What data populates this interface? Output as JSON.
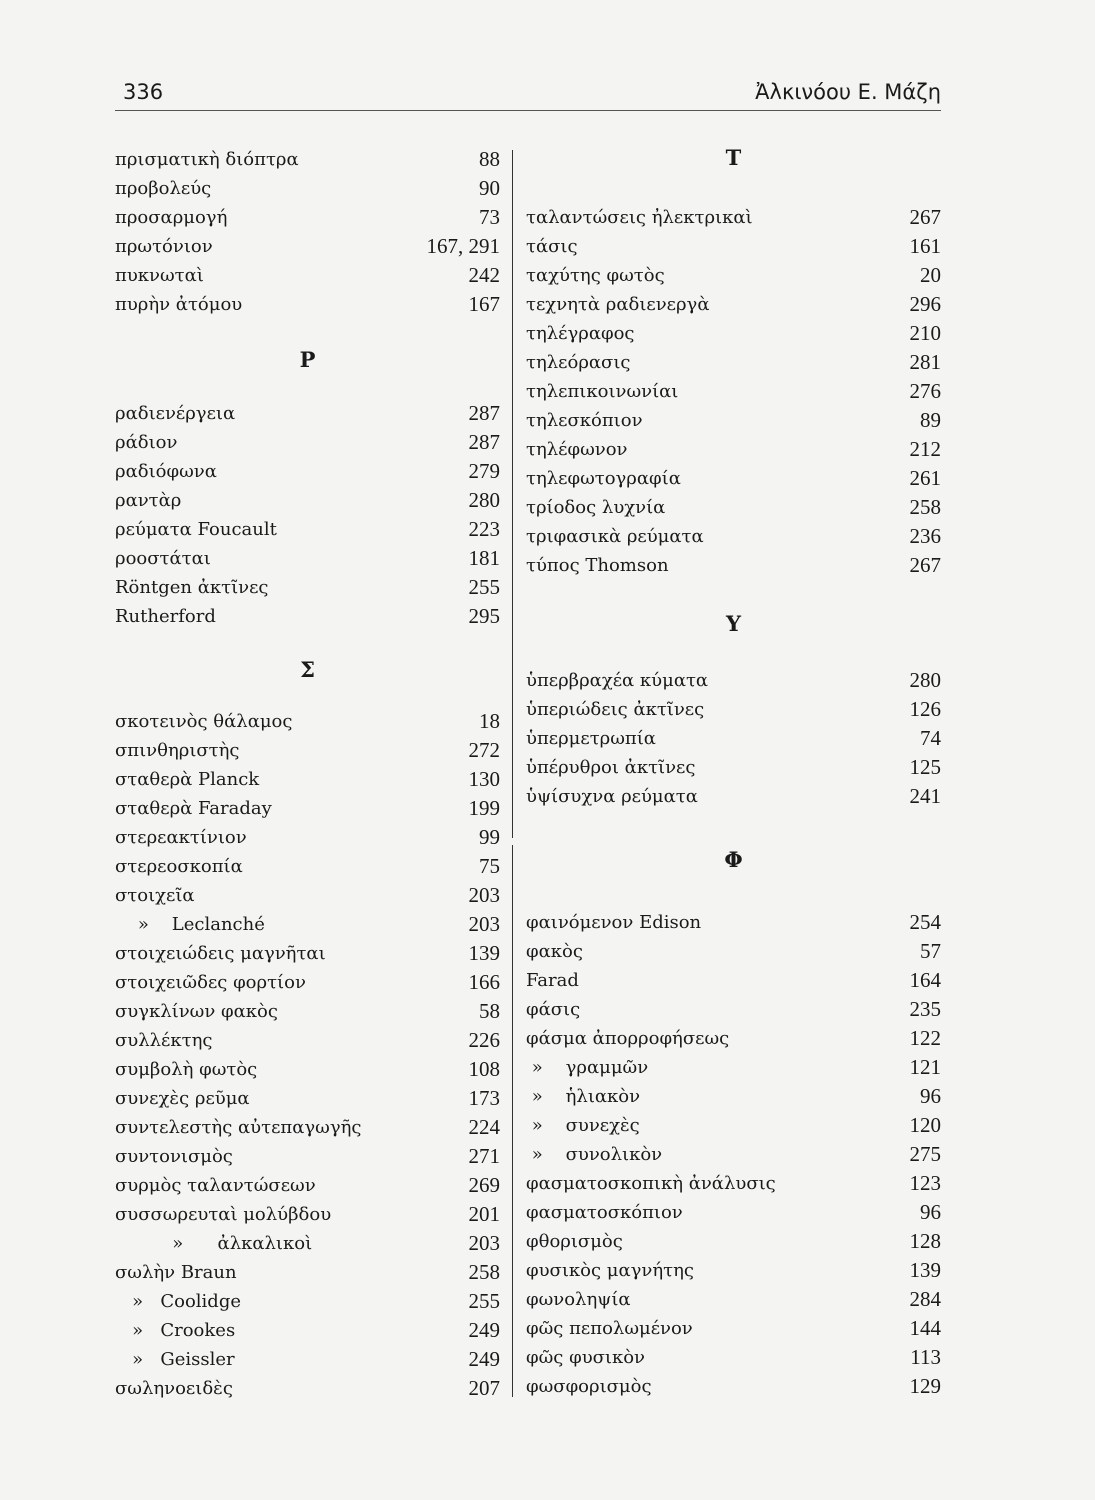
{
  "header": {
    "page_number": "336",
    "running_title": "Ἀλκινόου Ε. Μάζη"
  },
  "left": {
    "sections": [
      {
        "heading": "",
        "entries": [
          {
            "term": "πρισματικὴ διόπτρα",
            "page": "88"
          },
          {
            "term": "προβολεύς",
            "page": "90"
          },
          {
            "term": "προσαρμογή",
            "page": "73"
          },
          {
            "term": "πρωτόνιον",
            "page": "167, 291"
          },
          {
            "term": "πυκνωταὶ",
            "page": "242"
          },
          {
            "term": "πυρὴν ἀτόμου",
            "page": "167"
          }
        ]
      },
      {
        "heading": "Ρ",
        "entries": [
          {
            "term": "ραδιενέργεια",
            "page": "287"
          },
          {
            "term": "ράδιον",
            "page": "287"
          },
          {
            "term": "ραδιόφωνα",
            "page": "279"
          },
          {
            "term": "ραντὰρ",
            "page": "280"
          },
          {
            "term": "ρεύματα Foucault",
            "page": "223"
          },
          {
            "term": "ροοστάται",
            "page": "181"
          },
          {
            "term": "Röntgen ἀκτῖνες",
            "page": "255"
          },
          {
            "term": "Rutherford",
            "page": "295"
          }
        ]
      },
      {
        "heading": "Σ",
        "entries": [
          {
            "term": "σκοτεινὸς θάλαμος",
            "page": "18"
          },
          {
            "term": "σπινθηριστὴς",
            "page": "272"
          },
          {
            "term": "σταθερὰ Planck",
            "page": "130"
          },
          {
            "term": "σταθερὰ Faraday",
            "page": "199"
          },
          {
            "term": "στερεακτίνιον",
            "page": "99"
          },
          {
            "term": "στερεοσκοπία",
            "page": "75"
          },
          {
            "term": "στοιχεῖα",
            "page": "203"
          },
          {
            "term": "    »    Leclanché",
            "page": "203"
          },
          {
            "term": "στοιχειώδεις μαγνῆται",
            "page": "139"
          },
          {
            "term": "στοιχειῶδες φορτίον",
            "page": "166"
          },
          {
            "term": "συγκλίνων φακὸς",
            "page": "58"
          },
          {
            "term": "συλλέκτης",
            "page": "226"
          },
          {
            "term": "συμβολὴ φωτὸς",
            "page": "108"
          },
          {
            "term": "συνεχὲς ρεῦμα",
            "page": "173"
          },
          {
            "term": "συντελεστὴς αὐτεπαγωγῆς",
            "page": "224"
          },
          {
            "term": "συντονισμὸς",
            "page": "271"
          },
          {
            "term": "συρμὸς ταλαντώσεων",
            "page": "269"
          },
          {
            "term": "συσσωρευταὶ μολύβδου",
            "page": "201"
          },
          {
            "term": "          »      ἀλκαλικοὶ",
            "page": "203"
          },
          {
            "term": "σωλὴν Braun",
            "page": "258"
          },
          {
            "term": "   »   Coolidge",
            "page": "255"
          },
          {
            "term": "   »   Crookes",
            "page": "249"
          },
          {
            "term": "   »   Geissler",
            "page": "249"
          },
          {
            "term": "σωληνοειδὲς",
            "page": "207"
          }
        ]
      }
    ]
  },
  "right": {
    "sections": [
      {
        "heading": "Τ",
        "entries": [
          {
            "term": "ταλαντώσεις ἠλεκτρικαὶ",
            "page": "267"
          },
          {
            "term": "τάσις",
            "page": "161"
          },
          {
            "term": "ταχύτης φωτὸς",
            "page": "20"
          },
          {
            "term": "τεχνητὰ ραδιενεργὰ",
            "page": "296"
          },
          {
            "term": "τηλέγραφος",
            "page": "210"
          },
          {
            "term": "τηλεόρασις",
            "page": "281"
          },
          {
            "term": "τηλεπικοινωνίαι",
            "page": "276"
          },
          {
            "term": "τηλεσκόπιον",
            "page": "89"
          },
          {
            "term": "τηλέφωνον",
            "page": "212"
          },
          {
            "term": "τηλεφωτογραφία",
            "page": "261"
          },
          {
            "term": "τρίοδος λυχνία",
            "page": "258"
          },
          {
            "term": "τριφασικὰ ρεύματα",
            "page": "236"
          },
          {
            "term": "τύπος Thomson",
            "page": "267"
          }
        ]
      },
      {
        "heading": "Υ",
        "entries": [
          {
            "term": "ὑπερβραχέα κύματα",
            "page": "280"
          },
          {
            "term": "ὑπεριώδεις ἀκτῖνες",
            "page": "126"
          },
          {
            "term": "ὑπερμετρωπία",
            "page": "74"
          },
          {
            "term": "ὑπέρυθροι ἀκτῖνες",
            "page": "125"
          },
          {
            "term": "ὑψίσυχνα ρεύματα",
            "page": "241"
          }
        ]
      },
      {
        "heading": "Φ",
        "entries": [
          {
            "term": "φαινόμενον Edison",
            "page": "254"
          },
          {
            "term": "φακὸς",
            "page": "57"
          },
          {
            "term": "Farad",
            "page": "164"
          },
          {
            "term": "φάσις",
            "page": "235"
          },
          {
            "term": "φάσμα ἀπορροφήσεως",
            "page": "122"
          },
          {
            "term": " »    γραμμῶν",
            "page": "121"
          },
          {
            "term": " »    ἡλιακὸν",
            "page": "96"
          },
          {
            "term": " »    συνεχὲς",
            "page": "120"
          },
          {
            "term": " »    συνολικὸν",
            "page": "275"
          },
          {
            "term": "φασματοσκοπικὴ ἀνάλυσις",
            "page": "123"
          },
          {
            "term": "φασματοσκόπιον",
            "page": "96"
          },
          {
            "term": "φθορισμὸς",
            "page": "128"
          },
          {
            "term": "φυσικὸς μαγνήτης",
            "page": "139"
          },
          {
            "term": "φωνοληψία",
            "page": "284"
          },
          {
            "term": "φῶς πεπολωμένον",
            "page": "144"
          },
          {
            "term": "φῶς φυσικὸν",
            "page": "113"
          },
          {
            "term": "φωσφορισμὸς",
            "page": "129"
          }
        ]
      }
    ]
  }
}
